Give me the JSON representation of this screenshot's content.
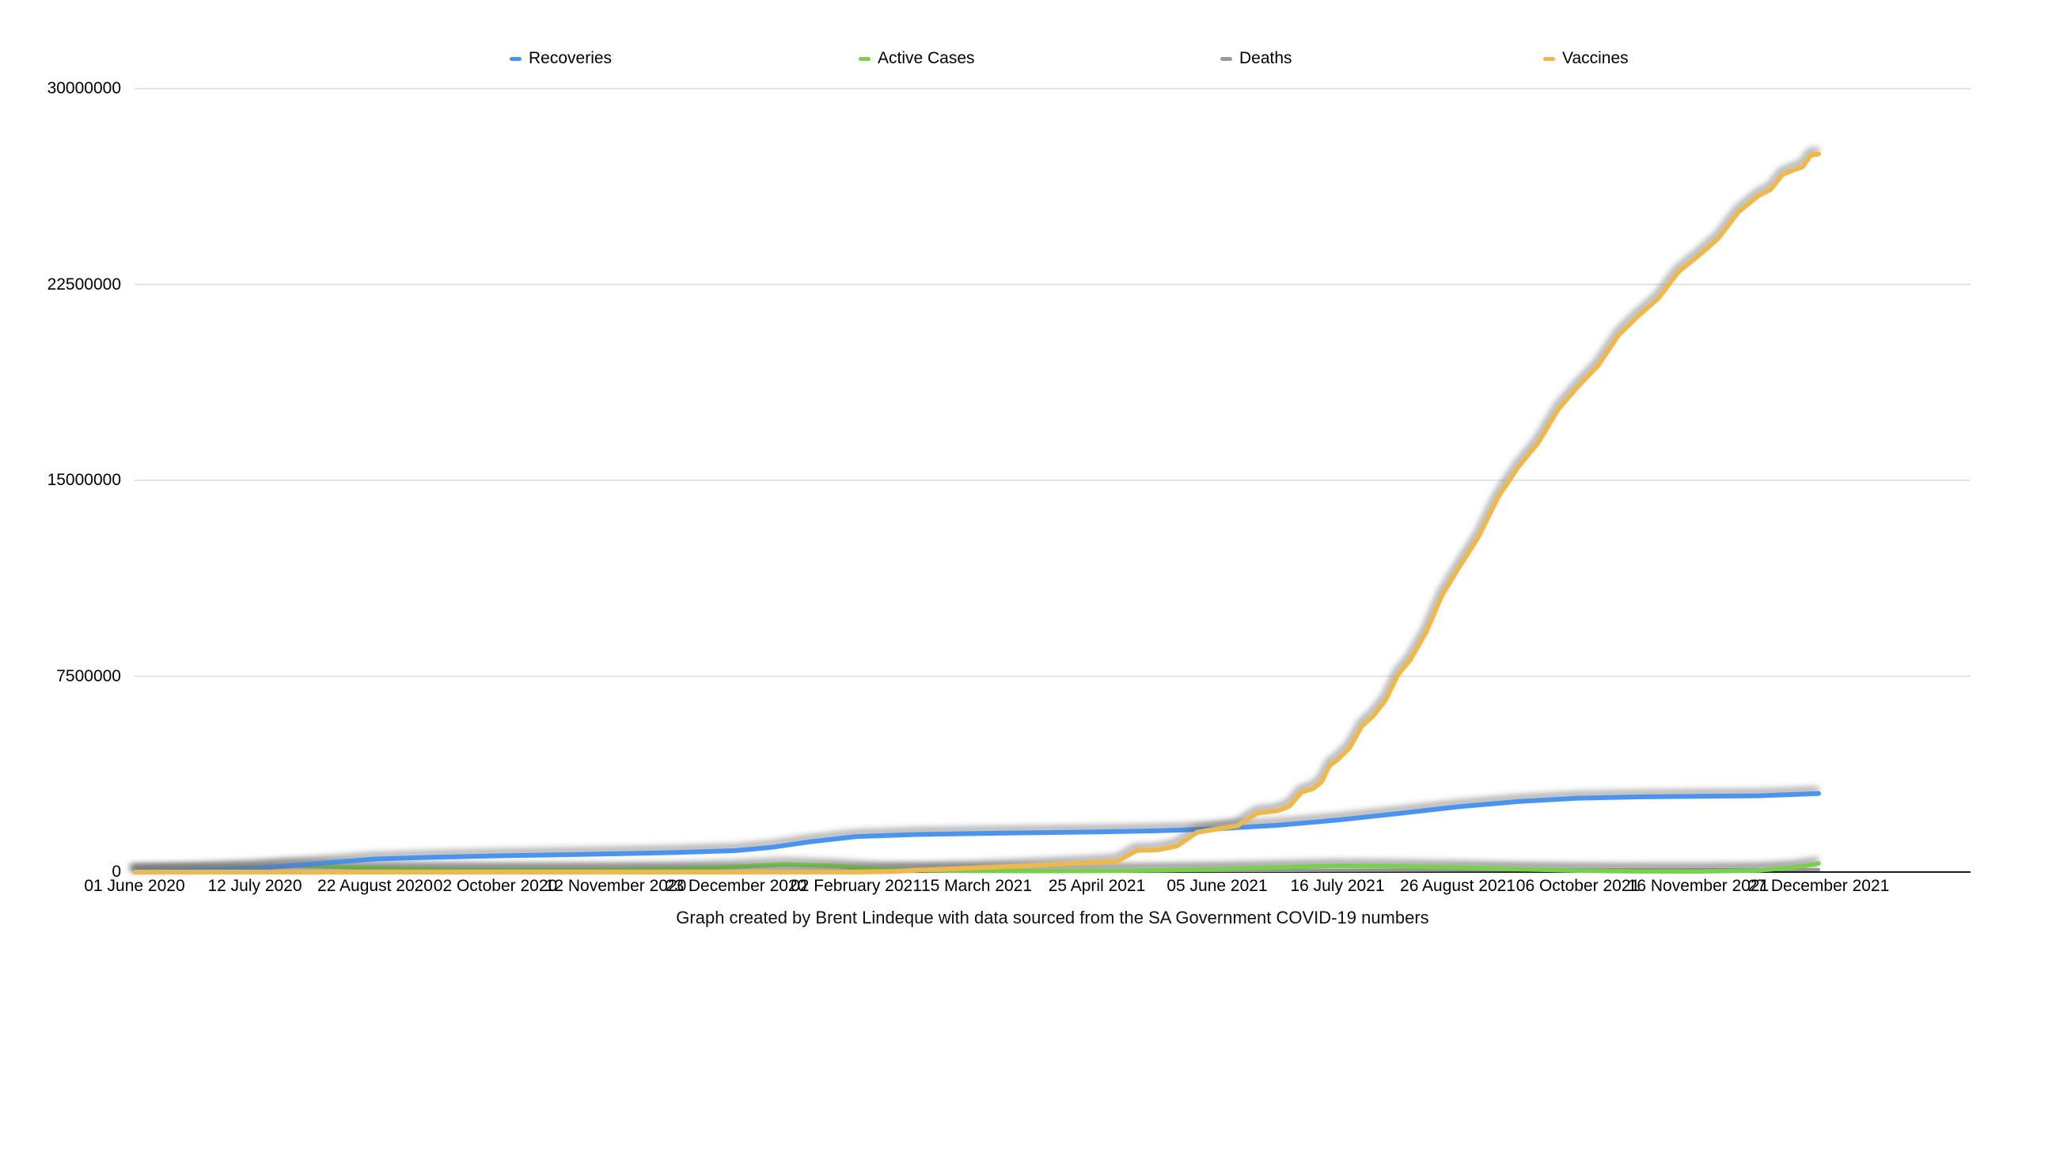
{
  "caption": {
    "text": "Graph created by Brent Lindeque with data sourced from the SA Government COVID-19 numbers"
  },
  "colors": {
    "grid": "#dcdcdc",
    "axis": "#1a1a1a",
    "background": "#ffffff"
  },
  "y_axis": {
    "labels": [
      "30000000",
      "22500000",
      "15000000",
      "7500000",
      "0"
    ],
    "values": [
      30000000,
      22500000,
      15000000,
      7500000,
      0
    ]
  },
  "chart_data": {
    "type": "line",
    "title": "",
    "xlabel": "",
    "ylabel": "",
    "ylim": [
      0,
      30000000
    ],
    "grid": "horizontal",
    "legend_position": "top",
    "categories": [
      "01 June 2020",
      "12 July 2020",
      "22 August 2020",
      "02 October 2020",
      "12 November 2020",
      "23 December 2020",
      "02 February 2021",
      "15 March 2021",
      "25 April 2021",
      "05 June 2021",
      "16 July 2021",
      "26 August 2021",
      "06 October 2021",
      "16 November 2021",
      "27 December 2021"
    ],
    "series": [
      {
        "name": "Deaths",
        "color": "#9a9a9a",
        "width": 4,
        "wobble": false,
        "points": [
          [
            0,
            1000
          ],
          [
            1,
            5000
          ],
          [
            2,
            14000
          ],
          [
            3,
            17000
          ],
          [
            4,
            20000
          ],
          [
            5,
            26000
          ],
          [
            5.5,
            35000
          ],
          [
            6,
            46000
          ],
          [
            6.5,
            50000
          ],
          [
            7,
            52000
          ],
          [
            8,
            55000
          ],
          [
            9,
            58000
          ],
          [
            9.5,
            62000
          ],
          [
            10,
            67000
          ],
          [
            10.5,
            74000
          ],
          [
            11,
            80000
          ],
          [
            11.5,
            85000
          ],
          [
            12,
            88000
          ],
          [
            13,
            89500
          ],
          [
            14,
            91000
          ]
        ]
      },
      {
        "name": "Active Cases",
        "color": "#77d14f",
        "width": 5.5,
        "wobble": false,
        "points": [
          [
            0,
            25000
          ],
          [
            0.5,
            80000
          ],
          [
            1,
            180000
          ],
          [
            1.3,
            250000
          ],
          [
            1.6,
            215000
          ],
          [
            2,
            150000
          ],
          [
            2.5,
            105000
          ],
          [
            3,
            80000
          ],
          [
            3.5,
            85000
          ],
          [
            4,
            95000
          ],
          [
            4.5,
            120000
          ],
          [
            5,
            200000
          ],
          [
            5.4,
            300000
          ],
          [
            5.8,
            240000
          ],
          [
            6.2,
            120000
          ],
          [
            6.6,
            60000
          ],
          [
            7,
            45000
          ],
          [
            7.5,
            40000
          ],
          [
            8,
            45000
          ],
          [
            8.5,
            65000
          ],
          [
            9,
            110000
          ],
          [
            9.5,
            180000
          ],
          [
            10,
            240000
          ],
          [
            10.4,
            225000
          ],
          [
            11,
            180000
          ],
          [
            11.5,
            110000
          ],
          [
            12,
            50000
          ],
          [
            12.5,
            28000
          ],
          [
            13,
            22000
          ],
          [
            13.5,
            60000
          ],
          [
            13.8,
            180000
          ],
          [
            14,
            330000
          ]
        ]
      },
      {
        "name": "Recoveries",
        "color": "#4a94ee",
        "width": 6,
        "wobble": false,
        "points": [
          [
            0,
            25000
          ],
          [
            0.5,
            70000
          ],
          [
            1,
            140000
          ],
          [
            1.5,
            320000
          ],
          [
            2,
            500000
          ],
          [
            2.5,
            570000
          ],
          [
            3,
            620000
          ],
          [
            3.5,
            660000
          ],
          [
            4,
            700000
          ],
          [
            4.5,
            750000
          ],
          [
            5,
            820000
          ],
          [
            5.3,
            950000
          ],
          [
            5.6,
            1150000
          ],
          [
            6,
            1360000
          ],
          [
            6.5,
            1440000
          ],
          [
            7,
            1480000
          ],
          [
            7.5,
            1510000
          ],
          [
            8,
            1540000
          ],
          [
            8.5,
            1580000
          ],
          [
            9,
            1660000
          ],
          [
            9.5,
            1790000
          ],
          [
            10,
            1990000
          ],
          [
            10.5,
            2240000
          ],
          [
            11,
            2500000
          ],
          [
            11.5,
            2700000
          ],
          [
            12,
            2830000
          ],
          [
            12.5,
            2880000
          ],
          [
            13,
            2900000
          ],
          [
            13.5,
            2920000
          ],
          [
            14,
            3010000
          ]
        ]
      },
      {
        "name": "Vaccines",
        "color": "#edb94d",
        "width": 6,
        "wobble": true,
        "points": [
          [
            0,
            0
          ],
          [
            3,
            0
          ],
          [
            6,
            0
          ],
          [
            6.3,
            20000
          ],
          [
            6.5,
            70000
          ],
          [
            7,
            160000
          ],
          [
            7.5,
            260000
          ],
          [
            8,
            370000
          ],
          [
            8.5,
            850000
          ],
          [
            9,
            1650000
          ],
          [
            9.5,
            2350000
          ],
          [
            9.8,
            3200000
          ],
          [
            10,
            4300000
          ],
          [
            10.3,
            6000000
          ],
          [
            10.6,
            8100000
          ],
          [
            11,
            11600000
          ],
          [
            11.5,
            15500000
          ],
          [
            12,
            18600000
          ],
          [
            12.5,
            21300000
          ],
          [
            13,
            23600000
          ],
          [
            13.5,
            25900000
          ],
          [
            13.8,
            26900000
          ],
          [
            14,
            27500000
          ]
        ]
      }
    ],
    "legend_order": [
      "Recoveries",
      "Active Cases",
      "Deaths",
      "Vaccines"
    ]
  }
}
